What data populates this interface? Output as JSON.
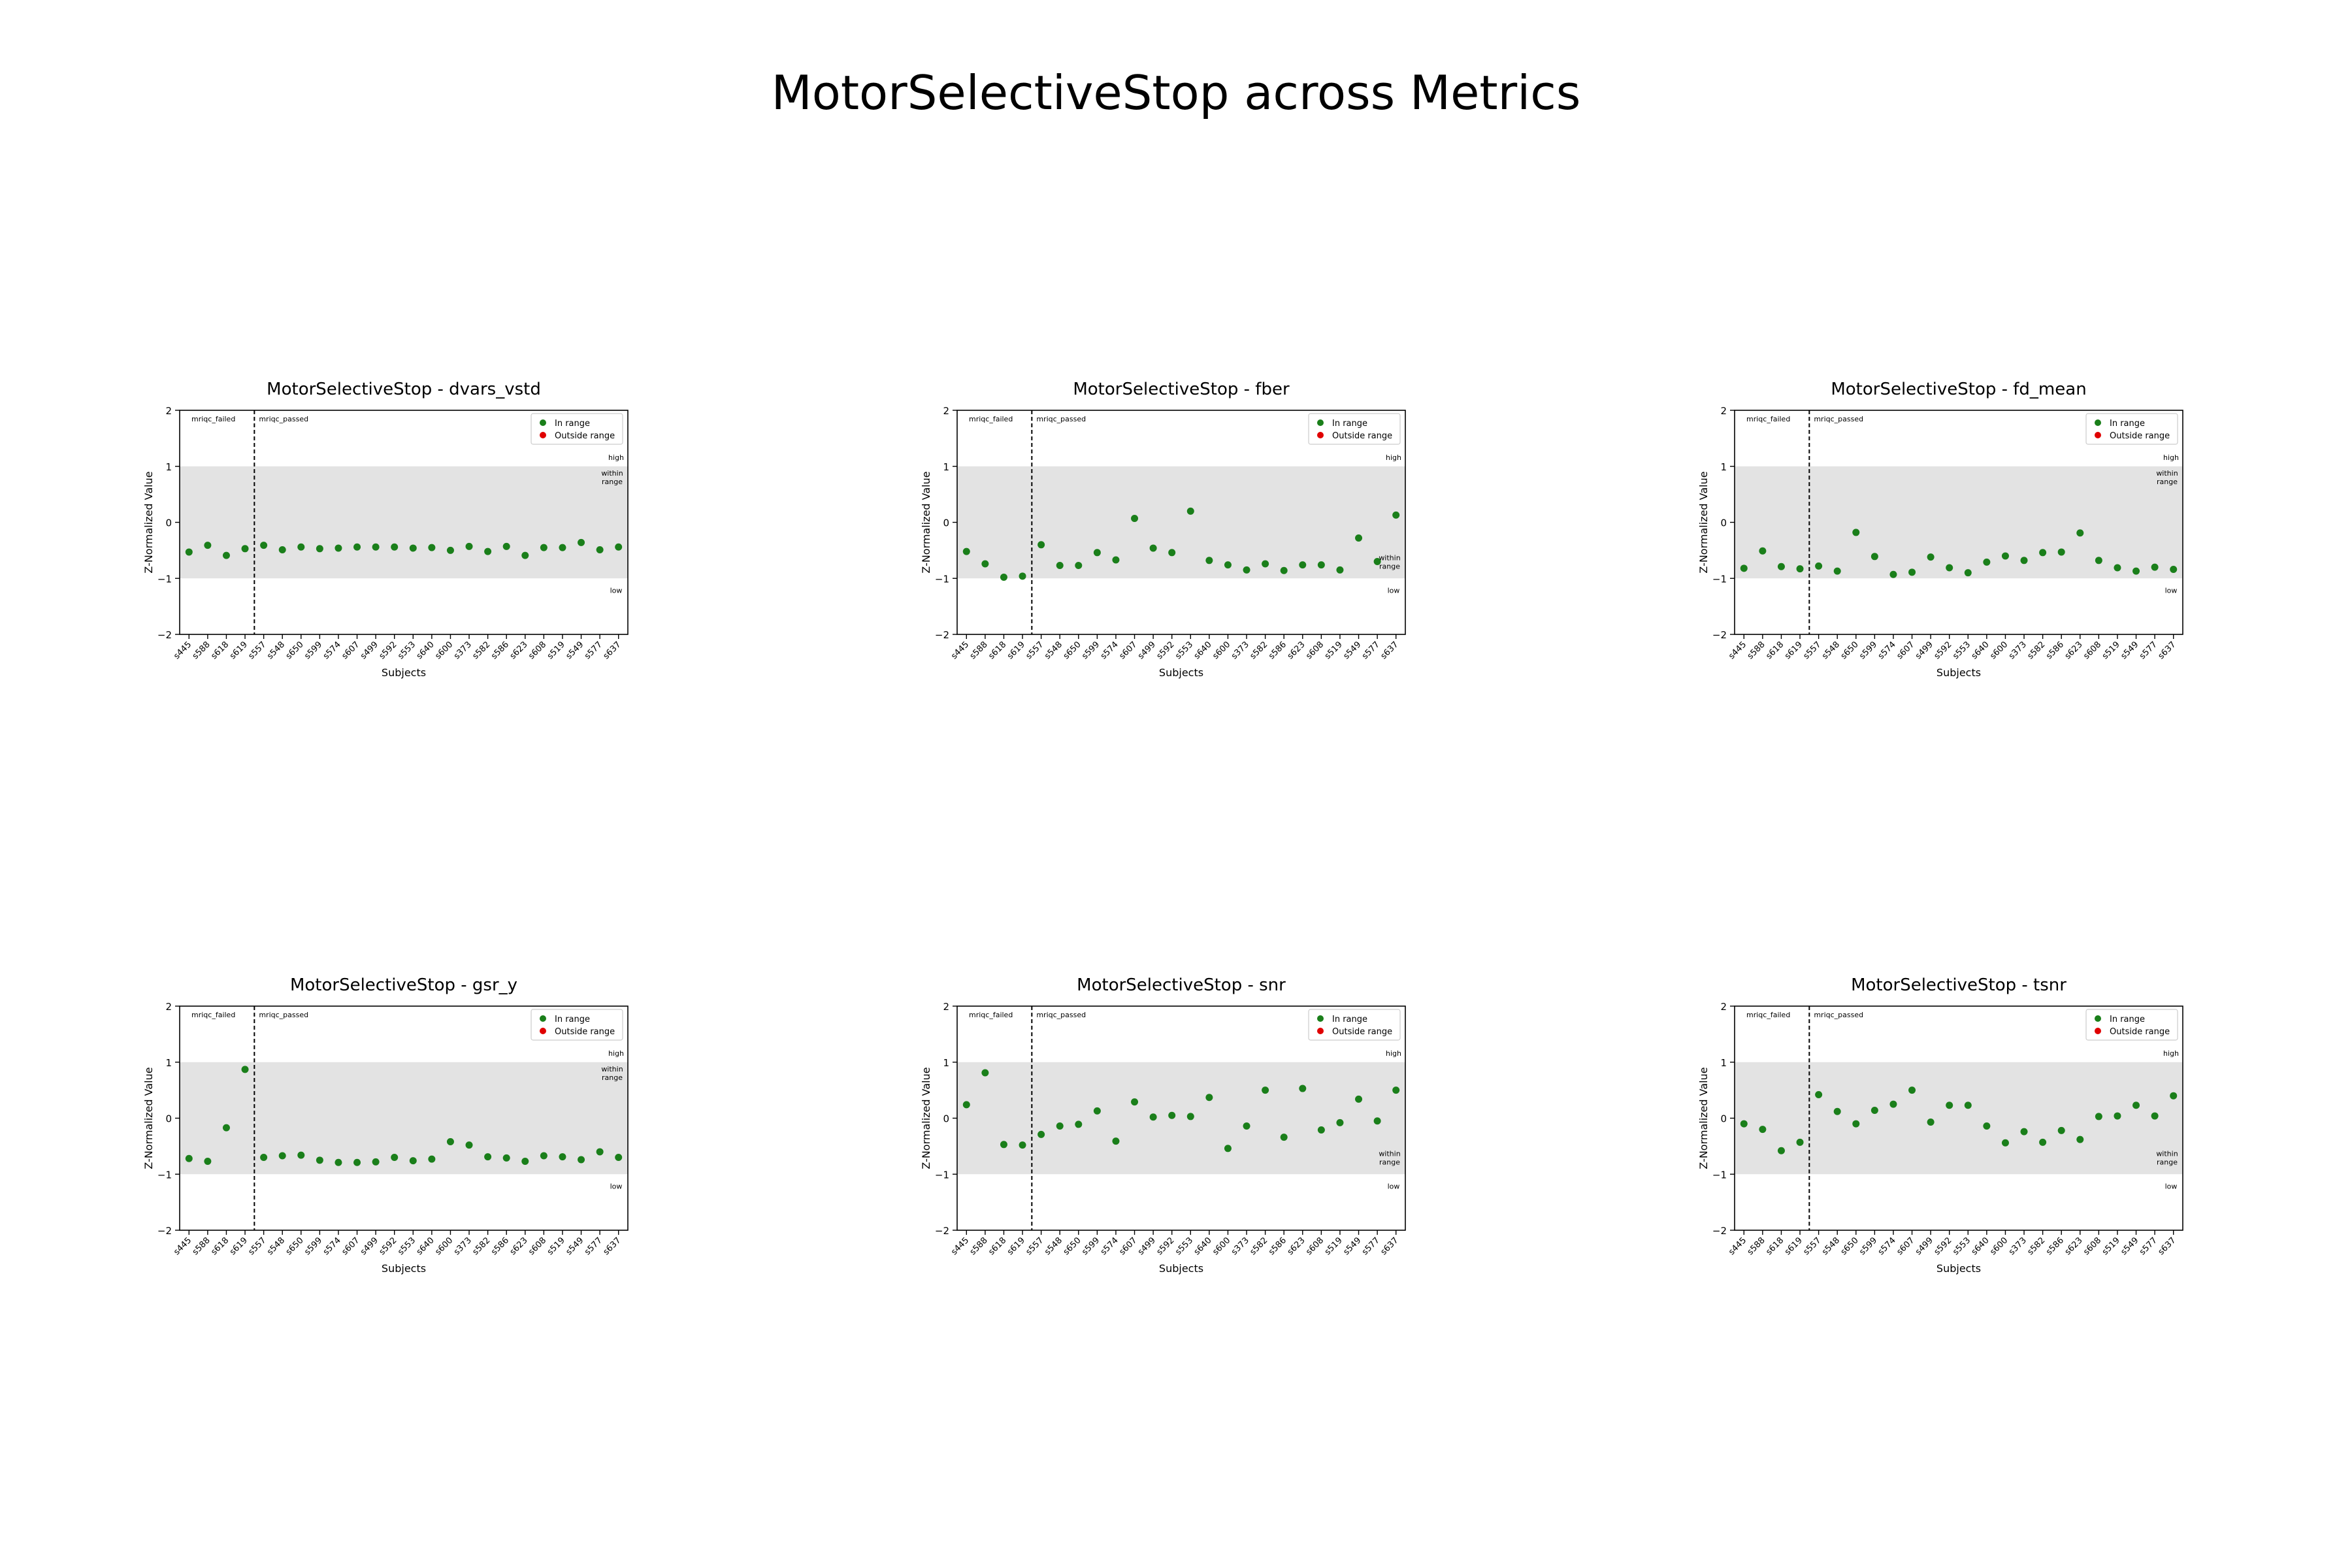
{
  "title": "MotorSelectiveStop across Metrics",
  "colors": {
    "in_range": "#1a7f1a",
    "outside_range": "#e00000",
    "band": "#e3e3e3"
  },
  "legend_labels": [
    "In range",
    "Outside range"
  ],
  "chart_data": [
    {
      "type": "scatter",
      "title": "MotorSelectiveStop - dvars_vstd",
      "xlabel": "Subjects",
      "ylabel": "Z-Normalized Value",
      "ylim": [
        -2,
        2
      ],
      "yticks": [
        "2",
        "1",
        "0",
        "−1",
        "−2"
      ],
      "categories": [
        "s445",
        "s588",
        "s618",
        "s619",
        "s557",
        "s548",
        "s650",
        "s599",
        "s574",
        "s607",
        "s499",
        "s592",
        "s553",
        "s640",
        "s600",
        "s373",
        "s582",
        "s586",
        "s623",
        "s608",
        "s519",
        "s549",
        "s577",
        "s637"
      ],
      "values": [
        -0.53,
        -0.41,
        -0.59,
        -0.47,
        -0.41,
        -0.49,
        -0.44,
        -0.47,
        -0.46,
        -0.44,
        -0.44,
        -0.44,
        -0.46,
        -0.45,
        -0.5,
        -0.43,
        -0.52,
        -0.43,
        -0.59,
        -0.45,
        -0.45,
        -0.36,
        -0.49,
        -0.44
      ],
      "failed_count": 4,
      "band": [
        -1,
        1
      ],
      "region_labels": {
        "failed": "mriqc_failed",
        "passed": "mriqc_passed",
        "high": "high",
        "within": "within range",
        "low": "low"
      },
      "within_label_position": "upper-right",
      "legend_position": "upper-right",
      "grid": false
    },
    {
      "type": "scatter",
      "title": "MotorSelectiveStop - fber",
      "xlabel": "Subjects",
      "ylabel": "Z-Normalized Value",
      "ylim": [
        -2,
        2
      ],
      "yticks": [
        "2",
        "1",
        "0",
        "−1",
        "−2"
      ],
      "categories": [
        "s445",
        "s588",
        "s618",
        "s619",
        "s557",
        "s548",
        "s650",
        "s599",
        "s574",
        "s607",
        "s499",
        "s592",
        "s553",
        "s640",
        "s600",
        "s373",
        "s582",
        "s586",
        "s623",
        "s608",
        "s519",
        "s549",
        "s577",
        "s637"
      ],
      "values": [
        -0.52,
        -0.74,
        -0.98,
        -0.96,
        -0.4,
        -0.77,
        -0.77,
        -0.54,
        -0.67,
        0.07,
        -0.46,
        -0.54,
        0.2,
        -0.68,
        -0.76,
        -0.85,
        -0.74,
        -0.86,
        -0.76,
        -0.76,
        -0.85,
        -0.28,
        -0.7,
        0.13
      ],
      "failed_count": 4,
      "band": [
        -1,
        1
      ],
      "region_labels": {
        "failed": "mriqc_failed",
        "passed": "mriqc_passed",
        "high": "high",
        "within": "within range",
        "low": "low"
      },
      "within_label_position": "lower-right",
      "legend_position": "upper-right",
      "grid": false
    },
    {
      "type": "scatter",
      "title": "MotorSelectiveStop - fd_mean",
      "xlabel": "Subjects",
      "ylabel": "Z-Normalized Value",
      "ylim": [
        -2,
        2
      ],
      "yticks": [
        "2",
        "1",
        "0",
        "−1",
        "−2"
      ],
      "categories": [
        "s445",
        "s588",
        "s618",
        "s619",
        "s557",
        "s548",
        "s650",
        "s599",
        "s574",
        "s607",
        "s499",
        "s592",
        "s553",
        "s640",
        "s600",
        "s373",
        "s582",
        "s586",
        "s623",
        "s608",
        "s519",
        "s549",
        "s577",
        "s637"
      ],
      "values": [
        -0.82,
        -0.51,
        -0.79,
        -0.83,
        -0.78,
        -0.87,
        -0.18,
        -0.61,
        -0.93,
        -0.89,
        -0.62,
        -0.81,
        -0.9,
        -0.71,
        -0.6,
        -0.68,
        -0.54,
        -0.53,
        -0.19,
        -0.68,
        -0.81,
        -0.87,
        -0.8,
        -0.84
      ],
      "failed_count": 4,
      "band": [
        -1,
        1
      ],
      "region_labels": {
        "failed": "mriqc_failed",
        "passed": "mriqc_passed",
        "high": "high",
        "within": "within range",
        "low": "low"
      },
      "within_label_position": "upper-right",
      "legend_position": "upper-right",
      "grid": false
    },
    {
      "type": "scatter",
      "title": "MotorSelectiveStop - gsr_y",
      "xlabel": "Subjects",
      "ylabel": "Z-Normalized Value",
      "ylim": [
        -2,
        2
      ],
      "yticks": [
        "2",
        "1",
        "0",
        "−1",
        "−2"
      ],
      "categories": [
        "s445",
        "s588",
        "s618",
        "s619",
        "s557",
        "s548",
        "s650",
        "s599",
        "s574",
        "s607",
        "s499",
        "s592",
        "s553",
        "s640",
        "s600",
        "s373",
        "s582",
        "s586",
        "s623",
        "s608",
        "s519",
        "s549",
        "s577",
        "s637"
      ],
      "values": [
        -0.72,
        -0.77,
        -0.17,
        0.87,
        -0.7,
        -0.67,
        -0.66,
        -0.75,
        -0.79,
        -0.79,
        -0.78,
        -0.7,
        -0.76,
        -0.73,
        -0.42,
        -0.48,
        -0.69,
        -0.71,
        -0.77,
        -0.67,
        -0.69,
        -0.74,
        -0.6,
        -0.7
      ],
      "failed_count": 4,
      "band": [
        -1,
        1
      ],
      "region_labels": {
        "failed": "mriqc_failed",
        "passed": "mriqc_passed",
        "high": "high",
        "within": "within range",
        "low": "low"
      },
      "within_label_position": "upper-right",
      "legend_position": "upper-right",
      "grid": false
    },
    {
      "type": "scatter",
      "title": "MotorSelectiveStop - snr",
      "xlabel": "Subjects",
      "ylabel": "Z-Normalized Value",
      "ylim": [
        -2,
        2
      ],
      "yticks": [
        "2",
        "1",
        "0",
        "−1",
        "−2"
      ],
      "categories": [
        "s445",
        "s588",
        "s618",
        "s619",
        "s557",
        "s548",
        "s650",
        "s599",
        "s574",
        "s607",
        "s499",
        "s592",
        "s553",
        "s640",
        "s600",
        "s373",
        "s582",
        "s586",
        "s623",
        "s608",
        "s519",
        "s549",
        "s577",
        "s637"
      ],
      "values": [
        0.24,
        0.81,
        -0.47,
        -0.48,
        -0.29,
        -0.14,
        -0.11,
        0.13,
        -0.41,
        0.29,
        0.02,
        0.05,
        0.03,
        0.37,
        -0.54,
        -0.14,
        0.5,
        -0.34,
        0.53,
        -0.21,
        -0.08,
        0.34,
        -0.05,
        0.5
      ],
      "failed_count": 4,
      "band": [
        -1,
        1
      ],
      "region_labels": {
        "failed": "mriqc_failed",
        "passed": "mriqc_passed",
        "high": "high",
        "within": "within range",
        "low": "low"
      },
      "within_label_position": "lower-right",
      "legend_position": "upper-right",
      "grid": false
    },
    {
      "type": "scatter",
      "title": "MotorSelectiveStop - tsnr",
      "xlabel": "Subjects",
      "ylabel": "Z-Normalized Value",
      "ylim": [
        -2,
        2
      ],
      "yticks": [
        "2",
        "1",
        "0",
        "−1",
        "−2"
      ],
      "categories": [
        "s445",
        "s588",
        "s618",
        "s619",
        "s557",
        "s548",
        "s650",
        "s599",
        "s574",
        "s607",
        "s499",
        "s592",
        "s553",
        "s640",
        "s600",
        "s373",
        "s582",
        "s586",
        "s623",
        "s608",
        "s519",
        "s549",
        "s577",
        "s637"
      ],
      "values": [
        -0.1,
        -0.2,
        -0.58,
        -0.43,
        0.42,
        0.12,
        -0.1,
        0.14,
        0.25,
        0.5,
        -0.07,
        0.23,
        0.23,
        -0.14,
        -0.44,
        -0.24,
        -0.43,
        -0.22,
        -0.38,
        0.03,
        0.04,
        0.23,
        0.04,
        0.4
      ],
      "failed_count": 4,
      "band": [
        -1,
        1
      ],
      "region_labels": {
        "failed": "mriqc_failed",
        "passed": "mriqc_passed",
        "high": "high",
        "within": "within range",
        "low": "low"
      },
      "within_label_position": "lower-right",
      "legend_position": "upper-right",
      "grid": false
    }
  ]
}
